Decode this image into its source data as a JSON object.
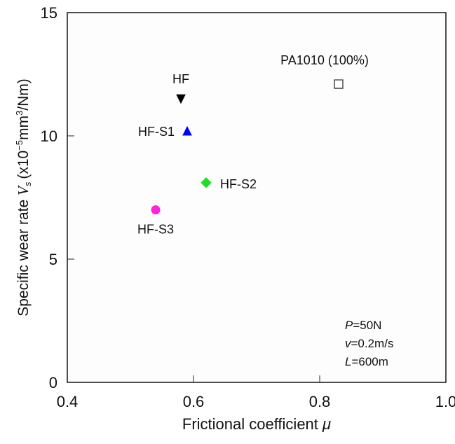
{
  "chart_data": {
    "type": "scatter",
    "title": "",
    "xlabel": "Frictional coefficient",
    "xlabel_symbol": "μ",
    "ylabel": "Specific wear rate",
    "ylabel_symbol": "V",
    "ylabel_subscript": "s",
    "ylabel_unit_prefix": "(x10",
    "ylabel_unit_exp": "−5",
    "ylabel_unit_mid": "mm",
    "ylabel_unit_exp2": "3",
    "ylabel_unit_suffix": "/Nm)",
    "xlim": [
      0.4,
      1.0
    ],
    "ylim": [
      0,
      15
    ],
    "xticks": [
      "0.4",
      "0.6",
      "0.8",
      "1.0"
    ],
    "xtick_values": [
      0.4,
      0.6,
      0.8,
      1.0
    ],
    "yticks": [
      "0",
      "5",
      "10",
      "15"
    ],
    "ytick_values": [
      0,
      5,
      10,
      15
    ],
    "grid": false,
    "points": [
      {
        "label": "HF",
        "x": 0.58,
        "y": 11.5,
        "marker": "triangle-down",
        "color": "#000000",
        "fill": true,
        "label_pos": "above"
      },
      {
        "label": "HF-S1",
        "x": 0.59,
        "y": 10.2,
        "marker": "triangle-up",
        "color": "#0000ff",
        "fill": true,
        "label_pos": "left"
      },
      {
        "label": "HF-S2",
        "x": 0.62,
        "y": 8.1,
        "marker": "diamond",
        "color": "#22dd22",
        "fill": true,
        "label_pos": "right"
      },
      {
        "label": "HF-S3",
        "x": 0.54,
        "y": 7.0,
        "marker": "circle",
        "color": "#ff22dd",
        "fill": true,
        "label_pos": "below"
      },
      {
        "label": "PA1010 (100%)",
        "x": 0.83,
        "y": 12.1,
        "marker": "square",
        "color": "#333333",
        "fill": false,
        "label_pos": "above"
      }
    ],
    "conditions": [
      {
        "var": "P",
        "value": "=50N"
      },
      {
        "var": "v",
        "value": "=0.2m/s"
      },
      {
        "var": "L",
        "value": "=600m"
      }
    ]
  }
}
